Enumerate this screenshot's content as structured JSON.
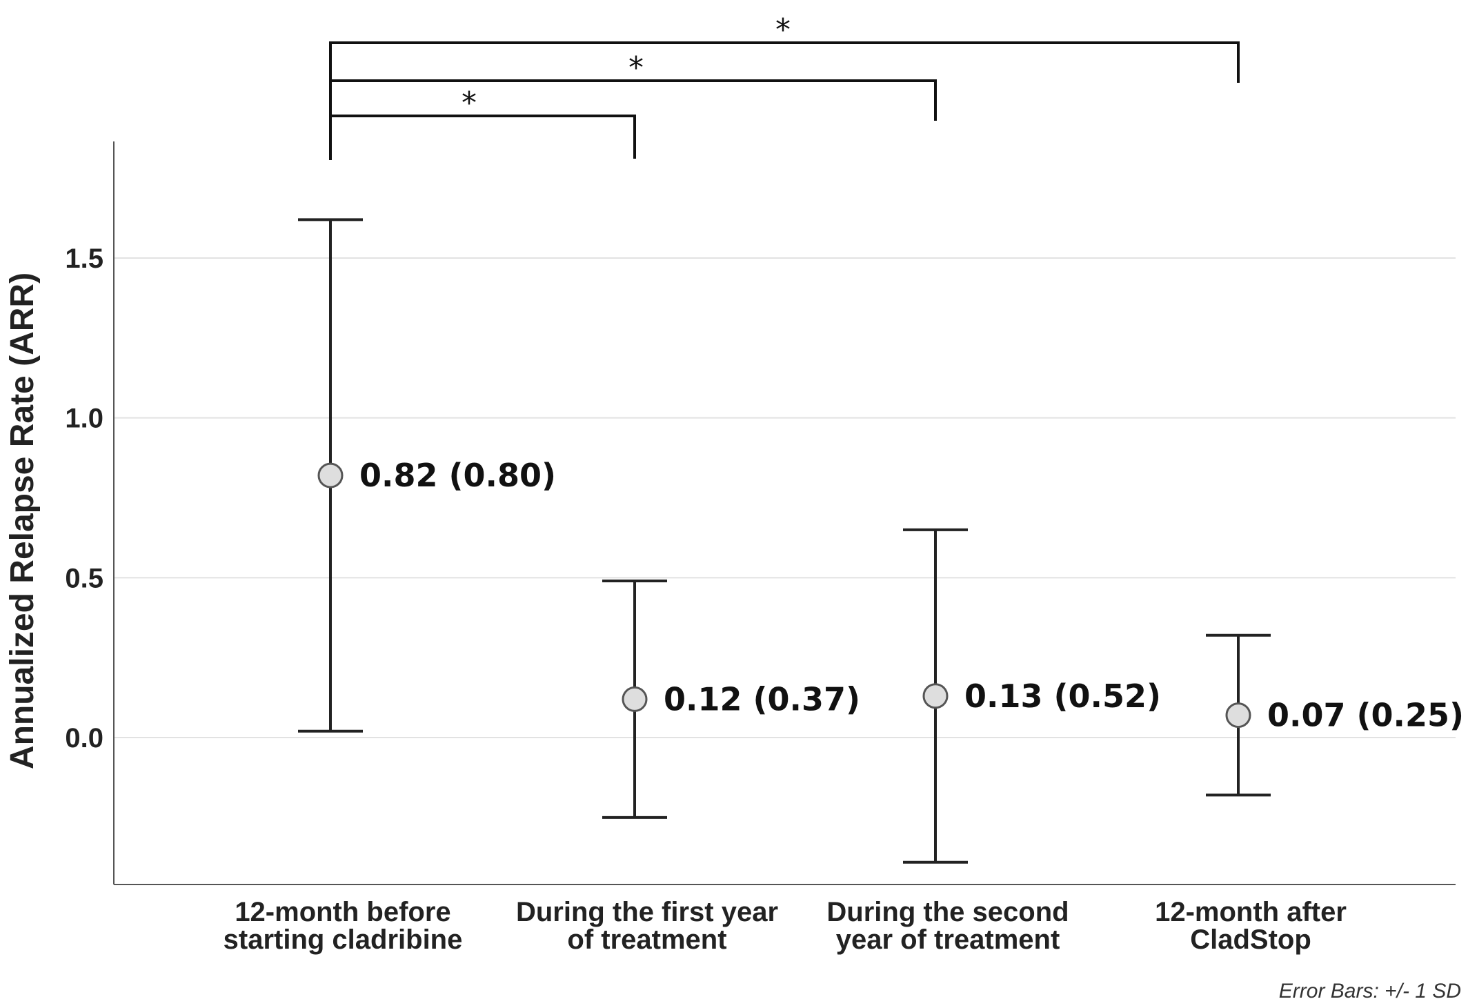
{
  "chart_data": {
    "type": "scatter",
    "subtype": "mean-with-error-bars",
    "ylabel": "Annualized Relapse Rate (ARR)",
    "ylim": [
      -0.47,
      1.87
    ],
    "yticks": [
      "0.0",
      "0.5",
      "1.0",
      "1.5"
    ],
    "grid": true,
    "categories": [
      [
        "12-month before",
        "starting cladribine"
      ],
      [
        "During the first year",
        "of treatment"
      ],
      [
        "During the second",
        "year of treatment"
      ],
      [
        "12-month after",
        "CladStop"
      ]
    ],
    "means": [
      0.82,
      0.12,
      0.13,
      0.07
    ],
    "sd": [
      0.8,
      0.37,
      0.52,
      0.25
    ],
    "data_labels": [
      "0.82 (0.80)",
      "0.12 (0.37)",
      "0.13 (0.52)",
      "0.07 (0.25)"
    ],
    "error_bar_note": "Error Bars: +/- 1 SD",
    "significance": [
      {
        "from": 0,
        "to": 1,
        "marker": "*"
      },
      {
        "from": 0,
        "to": 2,
        "marker": "*"
      },
      {
        "from": 0,
        "to": 3,
        "marker": "*"
      }
    ]
  }
}
